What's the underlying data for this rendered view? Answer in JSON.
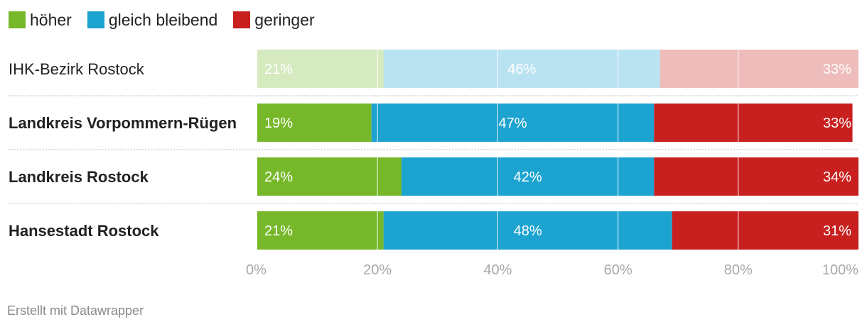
{
  "legend": [
    {
      "label": "höher",
      "color": "#77b82a"
    },
    {
      "label": "gleich bleibend",
      "color": "#1ca3d0"
    },
    {
      "label": "geringer",
      "color": "#c8201f"
    }
  ],
  "chart_data": {
    "type": "bar",
    "orientation": "horizontal",
    "stacked": true,
    "categories": [
      "IHK-Bezirk Rostock",
      "Landkreis Vorpommern-Rügen",
      "Landkreis Rostock",
      "Hansestadt Rostock"
    ],
    "category_bold": [
      false,
      true,
      true,
      true
    ],
    "category_faded": [
      true,
      false,
      false,
      false
    ],
    "series": [
      {
        "name": "höher",
        "values": [
          21,
          19,
          24,
          21
        ],
        "color": "#77b82a"
      },
      {
        "name": "gleich bleibend",
        "values": [
          46,
          47,
          42,
          48
        ],
        "color": "#1ca3d0"
      },
      {
        "name": "geringer",
        "values": [
          33,
          33,
          34,
          31
        ],
        "color": "#c8201f"
      }
    ],
    "data_labels": [
      [
        "21%",
        "46%",
        "33%"
      ],
      [
        "19%",
        "47%",
        "33%"
      ],
      [
        "24%",
        "42%",
        "34%"
      ],
      [
        "21%",
        "48%",
        "31%"
      ]
    ],
    "xlim": [
      0,
      100
    ],
    "x_ticks": [
      0,
      20,
      40,
      60,
      80,
      100
    ],
    "x_tick_labels": [
      "0%",
      "20%",
      "40%",
      "60%",
      "80%",
      "100%"
    ],
    "grid": true
  },
  "footer": "Erstellt mit Datawrapper"
}
